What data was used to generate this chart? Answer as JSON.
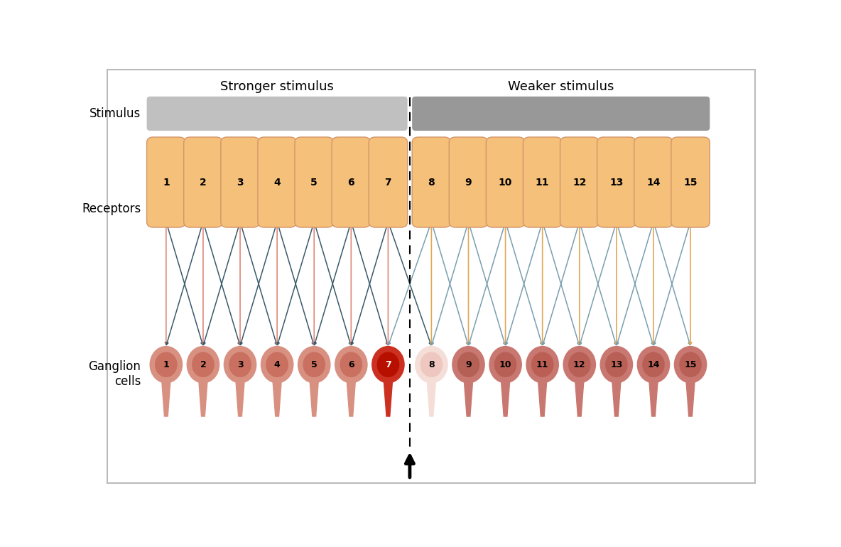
{
  "title_stronger": "Stronger stimulus",
  "title_weaker": "Weaker stimulus",
  "label_stimulus": "Stimulus",
  "label_receptors": "Receptors",
  "label_ganglion": "Ganglion\ncells",
  "n_cells": 15,
  "boundary": 7,
  "receptor_color": "#F5C07A",
  "receptor_border": "#D4956A",
  "ganglion_colors": {
    "1": "#C97060",
    "2": "#C97060",
    "3": "#C97060",
    "4": "#C97060",
    "5": "#C97060",
    "6": "#C97060",
    "7": "#B81000",
    "8": "#EEC8C0",
    "9": "#B56055",
    "10": "#B86055",
    "11": "#BB5F55",
    "12": "#B86055",
    "13": "#B86055",
    "14": "#B86055",
    "15": "#B86055"
  },
  "ganglion_outer_colors": {
    "1": "#D89080",
    "2": "#D89080",
    "3": "#D89080",
    "4": "#D89080",
    "5": "#D89080",
    "6": "#D89080",
    "7": "#CC3020",
    "8": "#F5DDD8",
    "9": "#C87870",
    "10": "#C87870",
    "11": "#C87870",
    "12": "#C87870",
    "13": "#C87870",
    "14": "#C87870",
    "15": "#C87870"
  },
  "ganglion_text_colors": {
    "1": "#000000",
    "2": "#000000",
    "3": "#000000",
    "4": "#000000",
    "5": "#000000",
    "6": "#000000",
    "7": "#FFFFFF",
    "8": "#000000",
    "9": "#000000",
    "10": "#000000",
    "11": "#000000",
    "12": "#000000",
    "13": "#000000",
    "14": "#000000",
    "15": "#000000"
  },
  "stimulus_color_left": "#C0C0C0",
  "stimulus_color_right": "#989898",
  "arrow_direct_left": "#E08878",
  "arrow_lateral_left": "#3A5A6A",
  "arrow_direct_right": "#E0A855",
  "arrow_lateral_right": "#7A9FB0",
  "background_color": "#FFFFFF",
  "border_color": "#BBBBBB"
}
